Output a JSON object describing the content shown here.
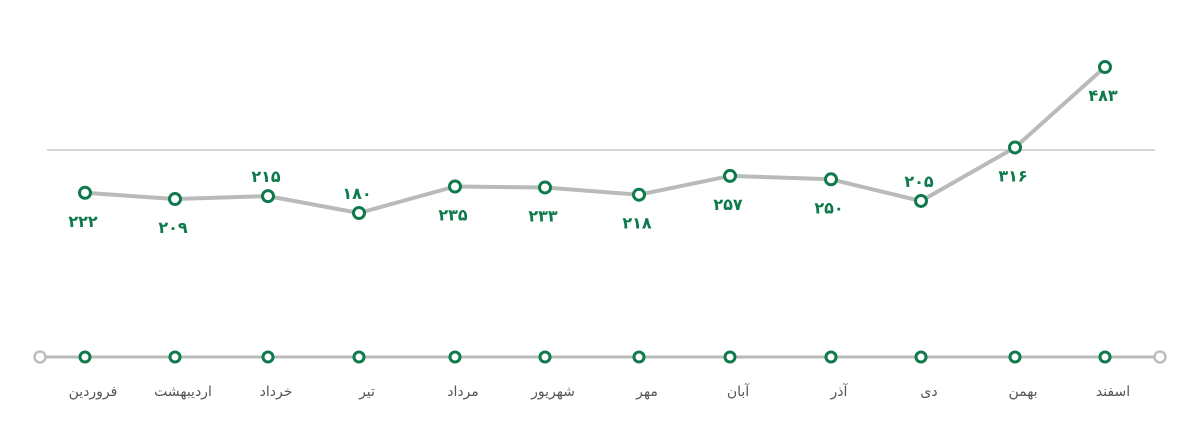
{
  "chart_data": {
    "type": "line",
    "categories": [
      "فروردین",
      "اردیبهشت",
      "خرداد",
      "تیر",
      "مرداد",
      "شهریور",
      "مهر",
      "آبان",
      "آذر",
      "دی",
      "بهمن",
      "اسفند"
    ],
    "values": [
      222,
      209,
      215,
      180,
      235,
      233,
      218,
      257,
      250,
      205,
      316,
      483
    ],
    "value_labels": [
      "۲۲۲",
      "۲۰۹",
      "۲۱۵",
      "۱۸۰",
      "۲۳۵",
      "۲۳۳",
      "۲۱۸",
      "۲۵۷",
      "۲۵۰",
      "۲۰۵",
      "۳۱۶",
      "۴۸۳"
    ],
    "label_side": [
      "below",
      "below",
      "above",
      "above",
      "below",
      "below",
      "below",
      "below",
      "below",
      "above",
      "below",
      "below"
    ],
    "title": "",
    "xlabel": "",
    "ylabel": "",
    "grid": false,
    "reference_line": true
  },
  "colors": {
    "line": "#b8bbb9",
    "marker_stroke": "#0e7a4c",
    "marker_fill": "#ffffff",
    "value_text": "#0e7a4c",
    "month_text": "#555555",
    "reference_line": "#d6d6d6",
    "axis_end": "#bdbdbd"
  }
}
